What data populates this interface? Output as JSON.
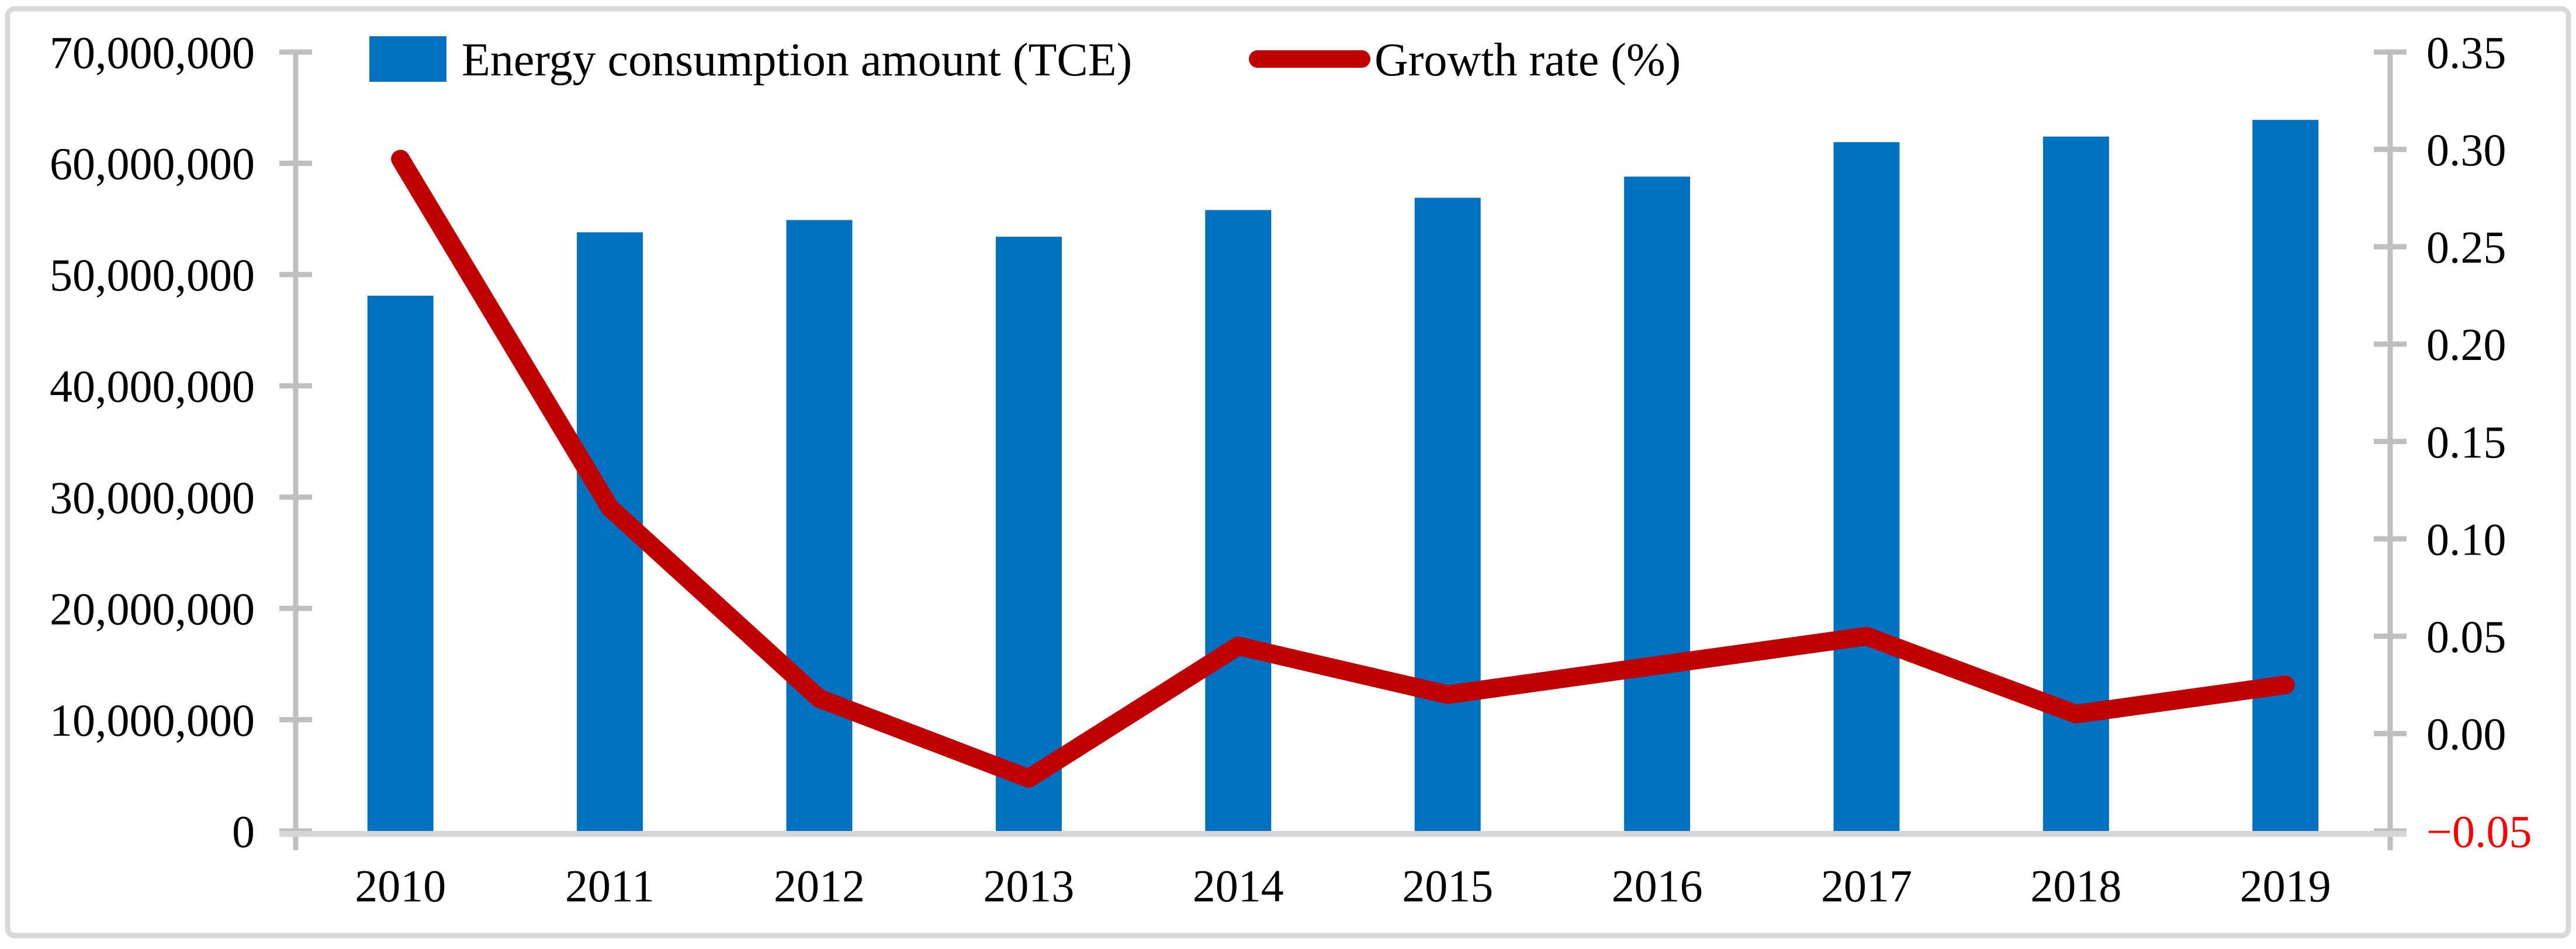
{
  "chart_data": {
    "type": "bar",
    "subtype": "bar-line-combo",
    "categories": [
      "2010",
      "2011",
      "2012",
      "2013",
      "2014",
      "2015",
      "2016",
      "2017",
      "2018",
      "2019"
    ],
    "series": [
      {
        "name": "Energy consumption amount (TCE)",
        "type": "bar",
        "axis": "left",
        "color": "#0070C0",
        "values": [
          48100000,
          53800000,
          54900000,
          53400000,
          55800000,
          56900000,
          58800000,
          61900000,
          62400000,
          63900000
        ]
      },
      {
        "name": "Growth rate (%)",
        "type": "line",
        "axis": "right",
        "color": "#C00000",
        "values": [
          0.295,
          0.116,
          0.018,
          -0.023,
          0.045,
          0.02,
          0.035,
          0.05,
          0.01,
          0.025
        ]
      }
    ],
    "left_axis": {
      "min": 0,
      "max": 70000000,
      "tick_step": 10000000,
      "tick_labels": [
        "70,000,000",
        "60,000,000",
        "50,000,000",
        "40,000,000",
        "30,000,000",
        "20,000,000",
        "10,000,000",
        "0"
      ]
    },
    "right_axis": {
      "min": -0.05,
      "max": 0.35,
      "tick_step": 0.05,
      "tick_labels": [
        "0.35",
        "0.30",
        "0.25",
        "0.20",
        "0.15",
        "0.10",
        "0.05",
        "0.00",
        "−0.05"
      ],
      "negative_label_color": "#FF0000"
    },
    "grid": false,
    "legend_position": "top",
    "colors": {
      "bar": "#0070C0",
      "line": "#C00000",
      "axis_line": "#BFBFBF",
      "bottom_axis_line": "#D6D6D6",
      "frame_border": "#D9D9D9",
      "text": "#000000",
      "negative_tick_label": "#FF0000"
    }
  },
  "legend": {
    "items": [
      {
        "label": "Energy consumption amount (TCE)",
        "marker": "square",
        "color": "#0070C0"
      },
      {
        "label": "Growth rate (%)",
        "marker": "line",
        "color": "#C00000"
      }
    ]
  }
}
